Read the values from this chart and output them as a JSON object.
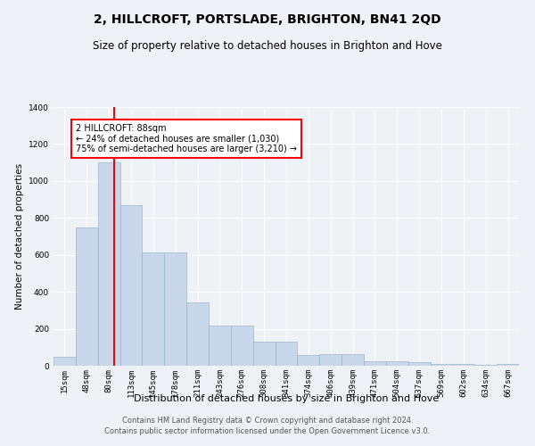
{
  "title": "2, HILLCROFT, PORTSLADE, BRIGHTON, BN41 2QD",
  "subtitle": "Size of property relative to detached houses in Brighton and Hove",
  "xlabel": "Distribution of detached houses by size in Brighton and Hove",
  "ylabel": "Number of detached properties",
  "categories": [
    "15sqm",
    "48sqm",
    "80sqm",
    "113sqm",
    "145sqm",
    "178sqm",
    "211sqm",
    "243sqm",
    "276sqm",
    "308sqm",
    "341sqm",
    "374sqm",
    "406sqm",
    "439sqm",
    "471sqm",
    "504sqm",
    "537sqm",
    "569sqm",
    "602sqm",
    "634sqm",
    "667sqm"
  ],
  "values": [
    50,
    750,
    1100,
    870,
    615,
    615,
    345,
    215,
    215,
    130,
    130,
    60,
    65,
    65,
    25,
    25,
    18,
    12,
    10,
    5,
    10
  ],
  "bar_color": "#c8d8ea",
  "bar_edge_color": "#9ab5cc",
  "red_line_index": 2,
  "red_line_label": "2 HILLCROFT: 88sqm",
  "annotation_line1": "← 24% of detached houses are smaller (1,030)",
  "annotation_line2": "75% of semi-detached houses are larger (3,210) →",
  "footer1": "Contains HM Land Registry data © Crown copyright and database right 2024.",
  "footer2": "Contains public sector information licensed under the Open Government Licence v3.0.",
  "ylim": [
    0,
    1400
  ],
  "yticks": [
    0,
    200,
    400,
    600,
    800,
    1000,
    1200,
    1400
  ],
  "bg_color": "#eef2f7",
  "plot_bg_color": "#eef2f7",
  "grid_color": "#ffffff",
  "title_fontsize": 10,
  "subtitle_fontsize": 8.5,
  "xlabel_fontsize": 8,
  "ylabel_fontsize": 7.5,
  "tick_fontsize": 6.5,
  "annot_fontsize": 7,
  "footer_fontsize": 6
}
